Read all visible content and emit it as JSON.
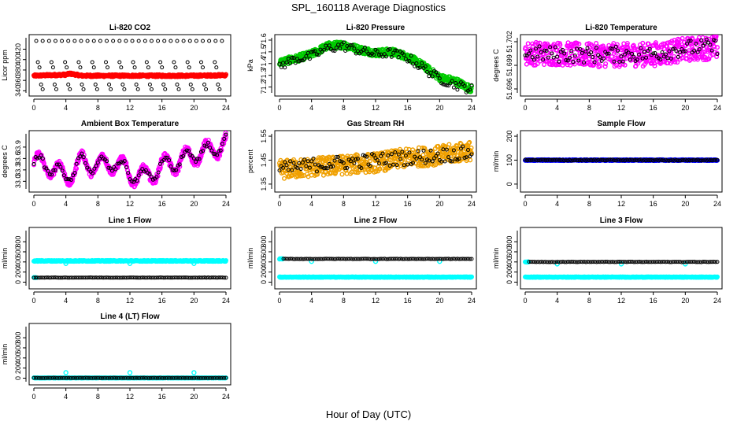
{
  "figure": {
    "title": "SPL_160118  Average Diagnostics",
    "xlabel": "Hour of Day (UTC)"
  },
  "chart_data": [
    {
      "type": "scatter",
      "title": "Li-820 CO2",
      "ylabel": "Licor ppm",
      "xlim": [
        0,
        24
      ],
      "ylim": [
        336,
        442
      ],
      "xticks": [
        "0",
        "4",
        "8",
        "12",
        "16",
        "20",
        "24"
      ],
      "yticks": [
        "340",
        "360",
        "380",
        "400",
        "420"
      ],
      "series": [
        {
          "color": "#ff0000",
          "kind": "dense",
          "pattern": "flat",
          "points": [
            [
              0,
              369
            ],
            [
              4,
              371
            ],
            [
              4.5,
              373
            ],
            [
              6,
              369
            ],
            [
              12,
              369
            ],
            [
              16,
              369
            ],
            [
              20,
              369
            ],
            [
              24,
              370
            ]
          ],
          "spread": 2
        },
        {
          "color": "#000000",
          "kind": "sparse",
          "pattern": "co2_black"
        }
      ]
    },
    {
      "type": "scatter",
      "title": "Li-820 Pressure",
      "ylabel": "kPa",
      "xlim": [
        0,
        24
      ],
      "ylim": [
        71.15,
        71.62
      ],
      "xticks": [
        "0",
        "4",
        "8",
        "12",
        "16",
        "20",
        "24"
      ],
      "yticks": [
        "71.2",
        "71.3",
        "71.4",
        "71.5",
        "71.6"
      ],
      "series": [
        {
          "color": "#00cc00",
          "kind": "dense",
          "pattern": "curve",
          "points": [
            [
              0,
              71.41
            ],
            [
              2,
              71.44
            ],
            [
              4,
              71.48
            ],
            [
              6,
              71.55
            ],
            [
              8,
              71.56
            ],
            [
              10,
              71.52
            ],
            [
              12,
              71.49
            ],
            [
              14,
              71.5
            ],
            [
              16,
              71.46
            ],
            [
              18,
              71.38
            ],
            [
              20,
              71.28
            ],
            [
              22,
              71.25
            ],
            [
              24,
              71.18
            ]
          ],
          "spread": 0.03
        },
        {
          "color": "#000000",
          "kind": "sparse",
          "pattern": "curve",
          "points": [
            [
              0,
              71.38
            ],
            [
              2,
              71.44
            ],
            [
              4,
              71.46
            ],
            [
              6,
              71.53
            ],
            [
              8,
              71.55
            ],
            [
              10,
              71.51
            ],
            [
              12,
              71.48
            ],
            [
              14,
              71.49
            ],
            [
              16,
              71.45
            ],
            [
              18,
              71.36
            ],
            [
              20,
              71.27
            ],
            [
              22,
              71.22
            ],
            [
              24,
              71.18
            ]
          ],
          "spread": 0.04
        }
      ]
    },
    {
      "type": "scatter",
      "title": "Li-820 Temperature",
      "ylabel": "degrees C",
      "xlim": [
        0,
        24
      ],
      "ylim": [
        51.6955,
        51.7025
      ],
      "xticks": [
        "0",
        "4",
        "8",
        "12",
        "16",
        "20",
        "24"
      ],
      "yticks": [
        "51.696",
        "51.699",
        "51.702"
      ],
      "series": [
        {
          "color": "#ff00ff",
          "kind": "dense",
          "pattern": "curve",
          "points": [
            [
              0,
              51.7005
            ],
            [
              4,
              51.7005
            ],
            [
              8,
              51.7003
            ],
            [
              12,
              51.7003
            ],
            [
              16,
              51.7004
            ],
            [
              20,
              51.701
            ],
            [
              24,
              51.7013
            ]
          ],
          "spread": 0.0015
        },
        {
          "color": "#000000",
          "kind": "sparse",
          "pattern": "curve",
          "points": [
            [
              0,
              51.7005
            ],
            [
              4,
              51.7004
            ],
            [
              8,
              51.7003
            ],
            [
              12,
              51.7004
            ],
            [
              16,
              51.7004
            ],
            [
              20,
              51.7012
            ],
            [
              24,
              51.7014
            ]
          ],
          "spread": 0.001
        }
      ]
    },
    {
      "type": "scatter",
      "title": "Ambient Box Temperature",
      "ylabel": "degrees C",
      "xlim": [
        0,
        24
      ],
      "ylim": [
        32.8,
        34.25
      ],
      "xticks": [
        "0",
        "4",
        "8",
        "12",
        "16",
        "20",
        "24"
      ],
      "yticks": [
        "33.0",
        "33.3",
        "33.6",
        "33.9"
      ],
      "series": [
        {
          "color": "#ff00ff",
          "kind": "dense",
          "pattern": "wave",
          "points": [
            [
              0,
              33.5
            ],
            [
              2,
              33.4
            ],
            [
              4,
              33.1
            ],
            [
              6,
              33.5
            ],
            [
              8,
              33.4
            ],
            [
              10,
              33.5
            ],
            [
              12,
              33.2
            ],
            [
              14,
              33.1
            ],
            [
              16,
              33.4
            ],
            [
              18,
              33.5
            ],
            [
              20,
              33.7
            ],
            [
              22,
              33.8
            ],
            [
              24,
              34.0
            ]
          ],
          "amp": 0.25,
          "spread": 0.08
        },
        {
          "color": "#000000",
          "kind": "sparse",
          "pattern": "wave",
          "points": [
            [
              0,
              33.5
            ],
            [
              2,
              33.4
            ],
            [
              4,
              33.1
            ],
            [
              6,
              33.5
            ],
            [
              8,
              33.4
            ],
            [
              10,
              33.5
            ],
            [
              12,
              33.2
            ],
            [
              14,
              33.1
            ],
            [
              16,
              33.4
            ],
            [
              18,
              33.5
            ],
            [
              20,
              33.7
            ],
            [
              22,
              33.8
            ],
            [
              24,
              34.0
            ]
          ],
          "amp": 0.2,
          "spread": 0.06
        }
      ]
    },
    {
      "type": "scatter",
      "title": "Gas Stream RH",
      "ylabel": "percent",
      "xlim": [
        0,
        24
      ],
      "ylim": [
        1.33,
        1.56
      ],
      "xticks": [
        "0",
        "4",
        "8",
        "12",
        "16",
        "20",
        "24"
      ],
      "yticks": [
        "1.35",
        "1.45",
        "1.55"
      ],
      "series": [
        {
          "color": "#f0a000",
          "kind": "dense",
          "pattern": "curve",
          "points": [
            [
              0,
              1.41
            ],
            [
              4,
              1.42
            ],
            [
              8,
              1.43
            ],
            [
              12,
              1.44
            ],
            [
              16,
              1.46
            ],
            [
              20,
              1.47
            ],
            [
              24,
              1.49
            ]
          ],
          "spread": 0.04
        },
        {
          "color": "#000000",
          "kind": "sparse",
          "pattern": "curve",
          "points": [
            [
              0,
              1.41
            ],
            [
              4,
              1.43
            ],
            [
              8,
              1.44
            ],
            [
              12,
              1.45
            ],
            [
              16,
              1.46
            ],
            [
              20,
              1.47
            ],
            [
              24,
              1.48
            ]
          ],
          "spread": 0.03
        }
      ]
    },
    {
      "type": "scatter",
      "title": "Sample Flow",
      "ylabel": "ml/min",
      "xlim": [
        0,
        24
      ],
      "ylim": [
        -20,
        210
      ],
      "xticks": [
        "0",
        "4",
        "8",
        "12",
        "16",
        "20",
        "24"
      ],
      "yticks": [
        "0",
        "100",
        "200"
      ],
      "series": [
        {
          "color": "#0000ff",
          "kind": "dense",
          "pattern": "flat",
          "points": [
            [
              0,
              100
            ],
            [
              24,
              100
            ]
          ],
          "spread": 2
        },
        {
          "color": "#000000",
          "kind": "sparse",
          "pattern": "flat",
          "points": [
            [
              0,
              100
            ],
            [
              24,
              100
            ]
          ],
          "spread": 2
        }
      ]
    },
    {
      "type": "scatter",
      "title": "Line 1 Flow",
      "ylabel": "ml/min",
      "xlim": [
        0,
        24
      ],
      "ylim": [
        -70,
        1020
      ],
      "xticks": [
        "0",
        "4",
        "8",
        "12",
        "16",
        "20",
        "24"
      ],
      "yticks": [
        "0",
        "200",
        "400",
        "600",
        "800"
      ],
      "series": [
        {
          "color": "#00ffff",
          "kind": "dense",
          "pattern": "flat",
          "points": [
            [
              0,
              420
            ],
            [
              24,
              420
            ]
          ],
          "spread": 10,
          "dips": [
            4,
            12,
            20
          ],
          "dip_value": 370
        },
        {
          "color": "#00ffff",
          "kind": "dense",
          "pattern": "flat",
          "points": [
            [
              0,
              90
            ],
            [
              0.3,
              90
            ]
          ],
          "spread": 3
        },
        {
          "color": "#000000",
          "kind": "sparse",
          "pattern": "flat",
          "points": [
            [
              0,
              90
            ],
            [
              24,
              90
            ]
          ],
          "spread": 3
        }
      ]
    },
    {
      "type": "scatter",
      "title": "Line 2 Flow",
      "ylabel": "ml/min",
      "xlim": [
        0,
        24
      ],
      "ylim": [
        -70,
        1020
      ],
      "xticks": [
        "0",
        "4",
        "8",
        "12",
        "16",
        "20",
        "24"
      ],
      "yticks": [
        "0",
        "200",
        "400",
        "600",
        "800"
      ],
      "series": [
        {
          "color": "#00ffff",
          "kind": "dense",
          "pattern": "flat",
          "points": [
            [
              0,
              100
            ],
            [
              24,
              100
            ]
          ],
          "spread": 6
        },
        {
          "color": "#00ffff",
          "kind": "dense",
          "pattern": "flat",
          "points": [
            [
              0,
              460
            ],
            [
              0.4,
              460
            ]
          ],
          "spread": 5,
          "dips": [
            4,
            12,
            20
          ],
          "dip_value": 410
        },
        {
          "color": "#000000",
          "kind": "sparse",
          "pattern": "flat",
          "points": [
            [
              0.5,
              460
            ],
            [
              24,
              460
            ]
          ],
          "spread": 4
        }
      ]
    },
    {
      "type": "scatter",
      "title": "Line 3 Flow",
      "ylabel": "ml/min",
      "xlim": [
        0,
        24
      ],
      "ylim": [
        -70,
        1020
      ],
      "xticks": [
        "0",
        "4",
        "8",
        "12",
        "16",
        "20",
        "24"
      ],
      "yticks": [
        "0",
        "200",
        "400",
        "600",
        "800"
      ],
      "series": [
        {
          "color": "#00ffff",
          "kind": "dense",
          "pattern": "flat",
          "points": [
            [
              0,
              100
            ],
            [
              24,
              100
            ]
          ],
          "spread": 6
        },
        {
          "color": "#00ffff",
          "kind": "dense",
          "pattern": "flat",
          "points": [
            [
              0,
              400
            ],
            [
              0.4,
              400
            ]
          ],
          "spread": 5,
          "dips": [
            4,
            12,
            20
          ],
          "dip_value": 360
        },
        {
          "color": "#000000",
          "kind": "sparse",
          "pattern": "flat",
          "points": [
            [
              0.5,
              400
            ],
            [
              24,
              400
            ]
          ],
          "spread": 4
        }
      ]
    },
    {
      "type": "scatter",
      "title": "Line 4 (LT) Flow",
      "ylabel": "ml/min",
      "xlim": [
        0,
        24
      ],
      "ylim": [
        -70,
        1020
      ],
      "xticks": [
        "0",
        "4",
        "8",
        "12",
        "16",
        "20",
        "24"
      ],
      "yticks": [
        "0",
        "200",
        "400",
        "600",
        "800"
      ],
      "series": [
        {
          "color": "#00ffff",
          "kind": "dense",
          "pattern": "flat",
          "points": [
            [
              0,
              5
            ],
            [
              24,
              5
            ]
          ],
          "spread": 3,
          "bumps": [
            4,
            12,
            20
          ],
          "bump_value": 110
        },
        {
          "color": "#000000",
          "kind": "sparse",
          "pattern": "flat",
          "points": [
            [
              0,
              5
            ],
            [
              24,
              5
            ]
          ],
          "spread": 2
        }
      ]
    }
  ]
}
